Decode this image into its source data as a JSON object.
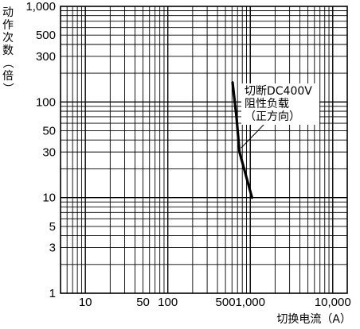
{
  "chart_data": {
    "type": "line",
    "title": "",
    "xlabel": "切换电流（A）",
    "ylabel": "动作次数（倍）",
    "x_scale": "log",
    "y_scale": "log",
    "xlim": [
      5,
      15000
    ],
    "ylim": [
      1,
      1000
    ],
    "grid": true,
    "x_tick_labels": [
      {
        "value": 10,
        "label": "10"
      },
      {
        "value": 50,
        "label": "50"
      },
      {
        "value": 100,
        "label": "100"
      },
      {
        "value": 500,
        "label": "500"
      },
      {
        "value": 1000,
        "label": "1,000"
      },
      {
        "value": 10000,
        "label": "10,000"
      }
    ],
    "y_tick_labels": [
      {
        "value": 1,
        "label": "1"
      },
      {
        "value": 3,
        "label": "3"
      },
      {
        "value": 5,
        "label": "5"
      },
      {
        "value": 10,
        "label": "10"
      },
      {
        "value": 30,
        "label": "30"
      },
      {
        "value": 50,
        "label": "50"
      },
      {
        "value": 100,
        "label": "100"
      },
      {
        "value": 300,
        "label": "300"
      },
      {
        "value": 500,
        "label": "500"
      },
      {
        "value": 1000,
        "label": "1,000"
      }
    ],
    "series": [
      {
        "x": [
          610,
          680,
          740,
          1050
        ],
        "y": [
          160,
          70,
          30,
          10
        ]
      }
    ],
    "annotation": {
      "lines": [
        "切断DC400V",
        "阻性负载",
        "（正方向）"
      ],
      "points_to": {
        "x": 740,
        "y": 33
      }
    }
  }
}
